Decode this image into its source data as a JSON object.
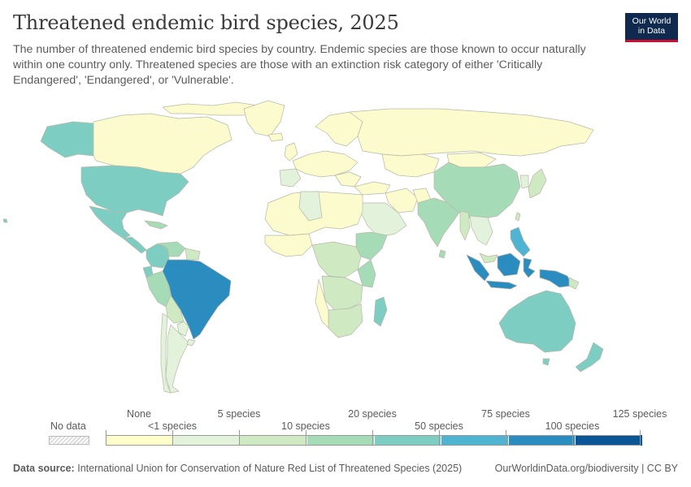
{
  "header": {
    "title": "Threatened endemic bird species, 2025",
    "subtitle": "The number of threatened endemic bird species by country. Endemic species are those known to occur naturally within one country only. Threatened species are those with an extinction risk category of either 'Critically Endangered', 'Endangered', or 'Vulnerable'.",
    "logo_line1": "Our World",
    "logo_line2": "in Data"
  },
  "legend": {
    "no_data_label": "No data",
    "top_labels": [
      "None",
      "5 species",
      "20 species",
      "75 species",
      "125 species"
    ],
    "bottom_labels": [
      "<1 species",
      "10 species",
      "50 species",
      "100 species"
    ],
    "bin_colors": [
      "#ffffcc",
      "#e3f2da",
      "#cfe9c3",
      "#a6dbb7",
      "#7ecdc2",
      "#4fb4d2",
      "#2a8cbf",
      "#0a5595"
    ]
  },
  "colors": {
    "none": "#fbfbce",
    "lt1": "#e3f2da",
    "c5": "#cfe9c3",
    "c10": "#a6dbb7",
    "c20": "#7ecdc2",
    "c50": "#4fb4d2",
    "c75": "#2a8cbf",
    "c100": "#0a5595",
    "border": "#b8b8a8"
  },
  "footer": {
    "source_label": "Data source:",
    "source_text": "International Union for Conservation of Nature Red List of Threatened Species (2025)",
    "link": "OurWorldinData.org/biodiversity | CC BY"
  }
}
